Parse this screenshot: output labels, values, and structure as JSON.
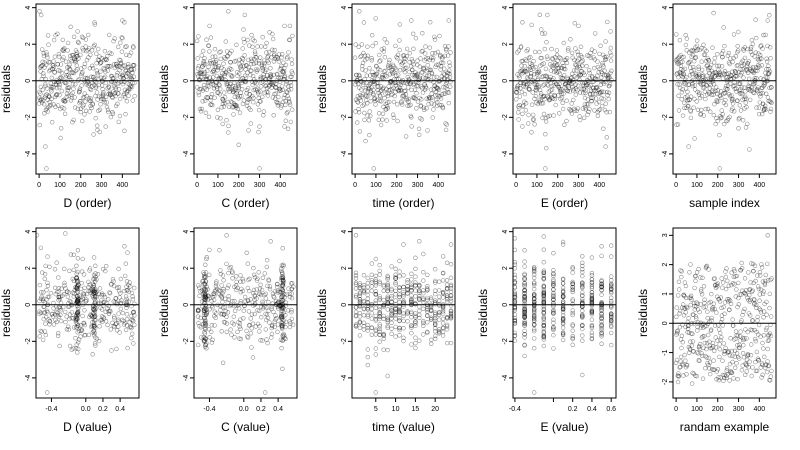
{
  "figure": {
    "layout": {
      "rows": 2,
      "cols": 5
    },
    "point_style": {
      "stroke": "#000000",
      "fill": "none",
      "opacity": 0.45
    },
    "colors": {
      "frame": "#000000",
      "reference_line": "#000000",
      "background": "#ffffff"
    }
  },
  "chart_data": [
    {
      "id": "p0",
      "type": "scatter",
      "xlabel": "D (order)",
      "ylabel": "residuals",
      "xlim": [
        -15,
        480
      ],
      "ylim": [
        -5.1,
        4.2
      ],
      "xticks": [
        0,
        100,
        200,
        300,
        400
      ],
      "yticks": [
        -4,
        -2,
        0,
        2,
        4
      ],
      "ytick_labels": [
        "-4",
        "-2",
        "0",
        "2",
        "4"
      ],
      "reference_line": 0,
      "grid": false,
      "n": 460,
      "x_kind": "order",
      "seed": 11,
      "sd": 1.1,
      "mode": "normal",
      "outliers": [
        [
          2,
          3.8
        ],
        [
          10,
          3.6
        ],
        [
          35,
          -4.8
        ],
        [
          30,
          -3.6
        ],
        [
          280,
          -2.7
        ],
        [
          400,
          3.3
        ],
        [
          410,
          3.2
        ]
      ]
    },
    {
      "id": "p1",
      "type": "scatter",
      "xlabel": "C (order)",
      "ylabel": "residuals",
      "xlim": [
        -15,
        480
      ],
      "ylim": [
        -5.1,
        4.2
      ],
      "xticks": [
        0,
        100,
        200,
        300,
        400
      ],
      "yticks": [
        -4,
        -2,
        0,
        2,
        4
      ],
      "ytick_labels": [
        "-4",
        "-2",
        "0",
        "2",
        "4"
      ],
      "reference_line": 0,
      "grid": false,
      "n": 460,
      "x_kind": "order",
      "seed": 23,
      "sd": 1.1,
      "mode": "normal",
      "outliers": [
        [
          60,
          3.0
        ],
        [
          150,
          3.8
        ],
        [
          300,
          -4.8
        ],
        [
          200,
          -3.5
        ],
        [
          420,
          -2.5
        ],
        [
          420,
          3.0
        ]
      ]
    },
    {
      "id": "p2",
      "type": "scatter",
      "xlabel": "time (order)",
      "ylabel": "residuals",
      "xlim": [
        -15,
        480
      ],
      "ylim": [
        -5.1,
        4.2
      ],
      "xticks": [
        0,
        100,
        200,
        300,
        400
      ],
      "yticks": [
        -4,
        -2,
        0,
        2,
        4
      ],
      "ytick_labels": [
        "-4",
        "-2",
        "0",
        "2",
        "4"
      ],
      "reference_line": 0,
      "grid": false,
      "n": 460,
      "x_kind": "order",
      "seed": 37,
      "sd": 1.1,
      "mode": "normal",
      "outliers": [
        [
          20,
          3.8
        ],
        [
          90,
          -4.8
        ],
        [
          270,
          3.3
        ],
        [
          450,
          3.3
        ],
        [
          50,
          -3.3
        ],
        [
          440,
          -2.4
        ]
      ]
    },
    {
      "id": "p3",
      "type": "scatter",
      "xlabel": "E (order)",
      "ylabel": "residuals",
      "xlim": [
        -15,
        480
      ],
      "ylim": [
        -5.1,
        4.2
      ],
      "xticks": [
        0,
        100,
        200,
        300,
        400
      ],
      "yticks": [
        -4,
        -2,
        0,
        2,
        4
      ],
      "ytick_labels": [
        "-4",
        "-2",
        "0",
        "2",
        "4"
      ],
      "reference_line": 0,
      "grid": false,
      "n": 460,
      "x_kind": "order",
      "seed": 41,
      "sd": 1.1,
      "mode": "normal",
      "outliers": [
        [
          30,
          3.2
        ],
        [
          140,
          -4.8
        ],
        [
          150,
          3.6
        ],
        [
          300,
          3.0
        ],
        [
          430,
          -3.6
        ],
        [
          30,
          -2.5
        ]
      ]
    },
    {
      "id": "p4",
      "type": "scatter",
      "xlabel": "sample index",
      "ylabel": "residuals",
      "xlim": [
        -15,
        480
      ],
      "ylim": [
        -5.1,
        4.2
      ],
      "xticks": [
        0,
        100,
        200,
        300,
        400
      ],
      "yticks": [
        -4,
        -2,
        0,
        2,
        4
      ],
      "ytick_labels": [
        "-4",
        "-2",
        "0",
        "2",
        "4"
      ],
      "reference_line": 0,
      "grid": false,
      "n": 460,
      "x_kind": "order",
      "seed": 53,
      "sd": 1.1,
      "mode": "normal",
      "outliers": [
        [
          180,
          3.7
        ],
        [
          210,
          -4.8
        ],
        [
          60,
          -3.6
        ],
        [
          300,
          -2.6
        ],
        [
          440,
          3.3
        ],
        [
          420,
          2.5
        ]
      ]
    },
    {
      "id": "p5",
      "type": "scatter",
      "xlabel": "D (value)",
      "ylabel": "residuals",
      "xlim": [
        -0.58,
        0.62
      ],
      "ylim": [
        -5.1,
        4.2
      ],
      "xticks": [
        -0.4,
        0.0,
        0.2,
        0.4
      ],
      "xtick_labels": [
        "-0.4",
        "0.0",
        "0.2",
        "0.4"
      ],
      "yticks": [
        -4,
        -2,
        0,
        2,
        4
      ],
      "ytick_labels": [
        "-4",
        "-2",
        "0",
        "2",
        "4"
      ],
      "reference_line": 0,
      "grid": false,
      "n": 460,
      "x_kind": "continuous",
      "seed": 67,
      "sd": 1.1,
      "mode": "normal",
      "clusters": [
        -0.1,
        0.1
      ],
      "outliers": [
        [
          -0.57,
          3.8
        ],
        [
          -0.45,
          -4.8
        ],
        [
          0.45,
          3.2
        ],
        [
          0.3,
          -2.5
        ]
      ]
    },
    {
      "id": "p6",
      "type": "scatter",
      "xlabel": "C (value)",
      "ylabel": "residuals",
      "xlim": [
        -0.58,
        0.62
      ],
      "ylim": [
        -5.1,
        4.2
      ],
      "xticks": [
        -0.4,
        0.0,
        0.2,
        0.4
      ],
      "xtick_labels": [
        "-0.4",
        "0.0",
        "0.2",
        "0.4"
      ],
      "yticks": [
        -4,
        -2,
        0,
        2,
        4
      ],
      "ytick_labels": [
        "-4",
        "-2",
        "0",
        "2",
        "4"
      ],
      "reference_line": 0,
      "grid": false,
      "n": 460,
      "x_kind": "continuous",
      "seed": 79,
      "sd": 1.1,
      "mode": "normal",
      "clusters": [
        -0.45,
        0.45
      ],
      "outliers": [
        [
          -0.4,
          3.0
        ],
        [
          -0.2,
          3.8
        ],
        [
          0.25,
          -4.8
        ],
        [
          0.45,
          -3.5
        ]
      ]
    },
    {
      "id": "p7",
      "type": "scatter",
      "xlabel": "time (value)",
      "ylabel": "residuals",
      "xlim": [
        -1,
        25
      ],
      "ylim": [
        -5.1,
        4.2
      ],
      "xticks": [
        5,
        10,
        15,
        20
      ],
      "yticks": [
        -4,
        -2,
        0,
        2,
        4
      ],
      "ytick_labels": [
        "-4",
        "-2",
        "0",
        "2",
        "4"
      ],
      "reference_line": 0,
      "grid": false,
      "n": 460,
      "x_kind": "discrete",
      "seed": 83,
      "sd": 1.1,
      "mode": "normal",
      "levels": [
        0,
        1,
        2,
        3,
        4,
        5,
        6,
        7,
        8,
        9,
        10,
        11,
        12,
        13,
        14,
        15,
        16,
        17,
        18,
        19,
        20,
        21,
        22,
        23,
        24
      ],
      "outliers": [
        [
          0,
          3.8
        ],
        [
          5,
          -4.8
        ],
        [
          12,
          3.3
        ],
        [
          24,
          3.3
        ],
        [
          3,
          -3.3
        ]
      ]
    },
    {
      "id": "p8",
      "type": "scatter",
      "xlabel": "E (value)",
      "ylabel": "residuals",
      "xlim": [
        -0.42,
        0.65
      ],
      "ylim": [
        -5.1,
        4.2
      ],
      "xticks": [
        -0.4,
        0.0,
        0.2,
        0.4,
        0.6
      ],
      "xtick_labels": [
        "-0.4",
        "",
        "0.2",
        "0.4",
        "0.6"
      ],
      "yticks": [
        -4,
        -2,
        0,
        2,
        4
      ],
      "ytick_labels": [
        "-4",
        "-2",
        "0",
        "2",
        "4"
      ],
      "reference_line": 0,
      "grid": false,
      "n": 460,
      "x_kind": "discrete",
      "seed": 97,
      "sd": 1.1,
      "mode": "normal",
      "levels": [
        -0.4,
        -0.3,
        -0.2,
        -0.1,
        0.0,
        0.1,
        0.2,
        0.3,
        0.4,
        0.5,
        0.6
      ],
      "outliers": [
        [
          -0.2,
          -4.8
        ],
        [
          0.1,
          3.3
        ],
        [
          0.5,
          3.2
        ],
        [
          -0.4,
          3.0
        ]
      ]
    },
    {
      "id": "p9",
      "type": "scatter",
      "xlabel": "randam example",
      "ylabel": "residuals",
      "xlim": [
        -15,
        480
      ],
      "ylim": [
        -2.55,
        3.25
      ],
      "xticks": [
        0,
        100,
        200,
        300,
        400
      ],
      "yticks": [
        -2,
        -1,
        0,
        1,
        2,
        3
      ],
      "ytick_labels": [
        "-2",
        "-1",
        "0",
        "1",
        "2",
        "3"
      ],
      "reference_line": 0,
      "grid": false,
      "n": 460,
      "x_kind": "order",
      "seed": 101,
      "sd": 1.0,
      "mode": "uniform",
      "outliers": [
        [
          440,
          3.0
        ]
      ]
    }
  ]
}
